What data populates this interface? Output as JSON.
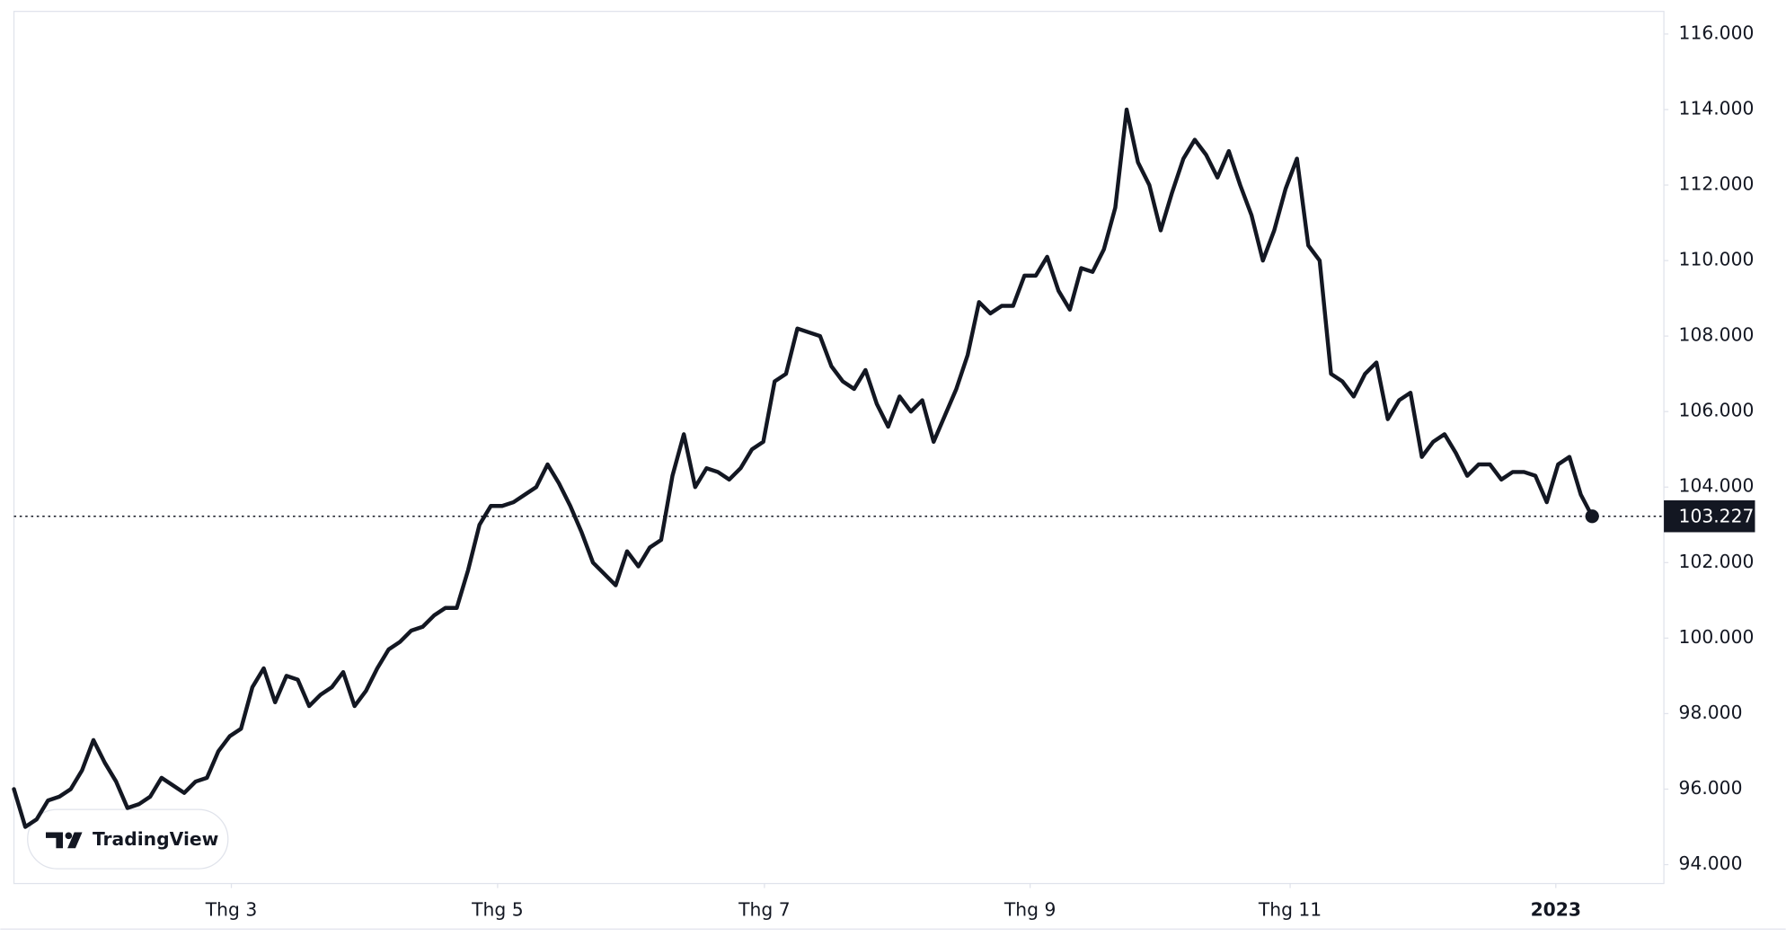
{
  "chart_data": {
    "type": "line",
    "watermark": "TradingView",
    "color": "#131722",
    "series": [
      {
        "name": null,
        "color": "#131722",
        "values": [
          96.0,
          95.0,
          95.2,
          95.7,
          95.8,
          96.0,
          96.5,
          97.3,
          96.7,
          96.2,
          95.5,
          95.6,
          95.8,
          96.3,
          96.1,
          95.9,
          96.2,
          96.3,
          97.0,
          97.4,
          97.6,
          98.7,
          99.2,
          98.3,
          99.0,
          98.9,
          98.2,
          98.5,
          98.7,
          99.1,
          98.2,
          98.6,
          99.2,
          99.7,
          99.9,
          100.2,
          100.3,
          100.6,
          100.8,
          100.8,
          101.8,
          103.0,
          103.5,
          103.5,
          103.6,
          103.8,
          104.0,
          104.6,
          104.1,
          103.5,
          102.8,
          102.0,
          101.7,
          101.4,
          102.3,
          101.9,
          102.4,
          102.6,
          104.3,
          105.4,
          104.0,
          104.5,
          104.4,
          104.2,
          104.5,
          105.0,
          105.2,
          106.8,
          107.0,
          108.2,
          108.1,
          108.0,
          107.2,
          106.8,
          106.6,
          107.1,
          106.2,
          105.6,
          106.4,
          106.0,
          106.3,
          105.2,
          105.9,
          106.6,
          107.5,
          108.9,
          108.6,
          108.8,
          108.8,
          109.6,
          109.6,
          110.1,
          109.2,
          108.7,
          109.8,
          109.7,
          110.3,
          111.4,
          114.0,
          112.6,
          112.0,
          110.8,
          111.8,
          112.7,
          113.2,
          112.8,
          112.2,
          112.9,
          112.0,
          111.2,
          110.0,
          110.8,
          111.9,
          112.7,
          110.4,
          110.0,
          107.0,
          106.8,
          106.4,
          107.0,
          107.3,
          105.8,
          106.3,
          106.5,
          104.8,
          105.2,
          105.4,
          104.9,
          104.3,
          104.6,
          104.6,
          104.2,
          104.4,
          104.4,
          104.3,
          103.6,
          104.6,
          104.8,
          103.8,
          103.227
        ]
      }
    ],
    "xlim": [
      0,
      139
    ],
    "xticks": [
      {
        "value": 19.15,
        "label": "Thg 3"
      },
      {
        "value": 42.6,
        "label": "Thg 5"
      },
      {
        "value": 66.1,
        "label": "Thg 7"
      },
      {
        "value": 89.5,
        "label": "Thg 9"
      },
      {
        "value": 112.4,
        "label": "Thg 11"
      },
      {
        "value": 135.8,
        "label": "2023"
      }
    ],
    "ylim": [
      93.5,
      116.6
    ],
    "yticks": [
      {
        "value": 94,
        "label": "94.000"
      },
      {
        "value": 96,
        "label": "96.000"
      },
      {
        "value": 98,
        "label": "98.000"
      },
      {
        "value": 100,
        "label": "100.000"
      },
      {
        "value": 102,
        "label": "102.000"
      },
      {
        "value": 104,
        "label": "104.000"
      },
      {
        "value": 106,
        "label": "106.000"
      },
      {
        "value": 108,
        "label": "108.000"
      },
      {
        "value": 110,
        "label": "110.000"
      },
      {
        "value": 112,
        "label": "112.000"
      },
      {
        "value": 114,
        "label": "114.000"
      },
      {
        "value": 116,
        "label": "116.000"
      }
    ],
    "grid": false
  }
}
